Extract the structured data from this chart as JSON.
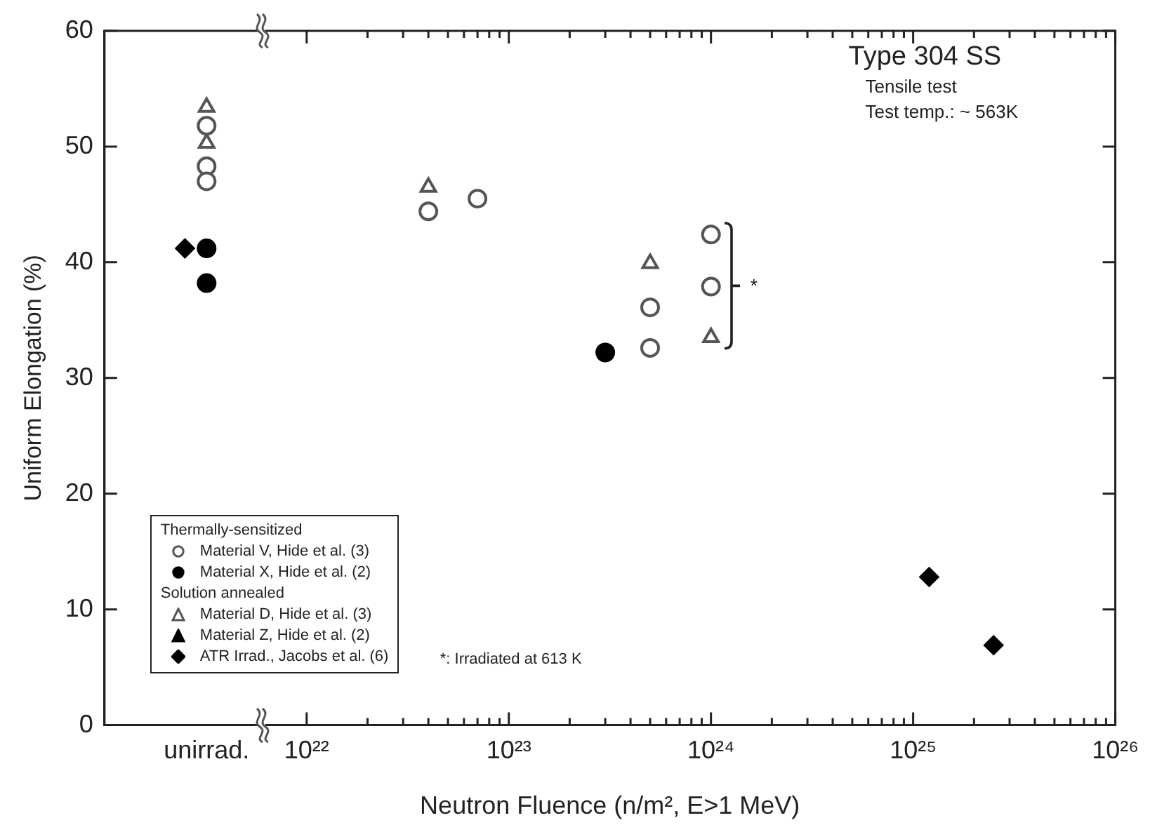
{
  "chart_data": {
    "type": "scatter",
    "title": "Type 304 SS",
    "subtitle": "Tensile test",
    "xlabel": "Neutron Fluence (n/m², E>1 MeV)",
    "ylabel": "Uniform Elongation (%)",
    "log": "x",
    "xlim": [
      1e+21,
      1e+26
    ],
    "xticks": [
      {
        "value": 3.2e+21,
        "label": "unirrad."
      },
      {
        "value": 1e+22,
        "label": "10²²"
      },
      {
        "value": 2e+22,
        "label": null
      },
      {
        "value": 3e+22,
        "label": null
      },
      {
        "value": 4e+22,
        "label": null
      },
      {
        "value": 5e+22,
        "label": null
      },
      {
        "value": 6e+22,
        "label": null
      },
      {
        "value": 7e+22,
        "label": null
      },
      {
        "value": 8e+22,
        "label": null
      },
      {
        "value": 9e+22,
        "label": null
      },
      {
        "value": 1e+23,
        "label": "10²³"
      },
      {
        "value": 2e+23,
        "label": null
      },
      {
        "value": 3e+23,
        "label": null
      },
      {
        "value": 4e+23,
        "label": null
      },
      {
        "value": 5e+23,
        "label": null
      },
      {
        "value": 6e+23,
        "label": null
      },
      {
        "value": 7e+23,
        "label": null
      },
      {
        "value": 8e+23,
        "label": null
      },
      {
        "value": 9e+23,
        "label": null
      },
      {
        "value": 1e+24,
        "label": "10²⁴"
      },
      {
        "value": 2e+24,
        "label": null
      },
      {
        "value": 3e+24,
        "label": null
      },
      {
        "value": 4e+24,
        "label": null
      },
      {
        "value": 5e+24,
        "label": null
      },
      {
        "value": 6e+24,
        "label": null
      },
      {
        "value": 7e+24,
        "label": null
      },
      {
        "value": 8e+24,
        "label": null
      },
      {
        "value": 9e+24,
        "label": null
      },
      {
        "value": 1e+25,
        "label": "10²⁵"
      },
      {
        "value": 2e+25,
        "label": null
      },
      {
        "value": 3e+25,
        "label": null
      },
      {
        "value": 4e+25,
        "label": null
      },
      {
        "value": 5e+25,
        "label": null
      },
      {
        "value": 6e+25,
        "label": null
      },
      {
        "value": 7e+25,
        "label": null
      },
      {
        "value": 8e+25,
        "label": null
      },
      {
        "value": 9e+25,
        "label": null
      },
      {
        "value": 1e+26,
        "label": "10²⁶"
      }
    ],
    "ylim": [
      0,
      60
    ],
    "yticks": [
      0,
      10,
      20,
      30,
      40,
      50,
      60
    ],
    "grid": false,
    "legend": "bottom left",
    "series": [
      {
        "name": "Material V, Hide et al. (3)",
        "marker": "circle",
        "color": "#555555",
        "x": [
          3.2e+21,
          3.2e+21,
          3.2e+21,
          4e+22,
          7e+22,
          5e+23,
          5e+23,
          1e+24,
          1e+24
        ],
        "values": [
          51.8,
          48.3,
          47.0,
          44.4,
          45.5,
          36.1,
          32.6,
          42.4,
          37.9
        ]
      },
      {
        "name": "Material X, Hide et al. (2)",
        "marker": "circle",
        "color": "#000000",
        "x": [
          3.2e+21,
          3.2e+21,
          3e+23
        ],
        "values": [
          41.2,
          38.2,
          32.2
        ]
      },
      {
        "name": "Material D, Hide et al. (3)",
        "marker": "triangle",
        "color": "#555555",
        "x": [
          3.2e+21,
          3.2e+21,
          4e+22,
          5e+23,
          1e+24
        ],
        "values": [
          53.4,
          50.3,
          46.5,
          39.9,
          33.5
        ]
      },
      {
        "name": "Material Z, Hide et al. (2)",
        "marker": "triangle",
        "color": "#000000"
      },
      {
        "name": "ATR Irrad., Jacobs et al. (6)",
        "marker": "diamond",
        "color": "#000000",
        "x": [
          2.5e+21,
          1.2e+25,
          2.5e+25
        ],
        "values": [
          41.2,
          12.8,
          6.9
        ]
      }
    ],
    "annotations": [
      "Test temp.: ~ 563K",
      "Thermally-sensitized",
      "Solution annealed",
      "*:  Irradiated at 613 K",
      "*"
    ]
  }
}
